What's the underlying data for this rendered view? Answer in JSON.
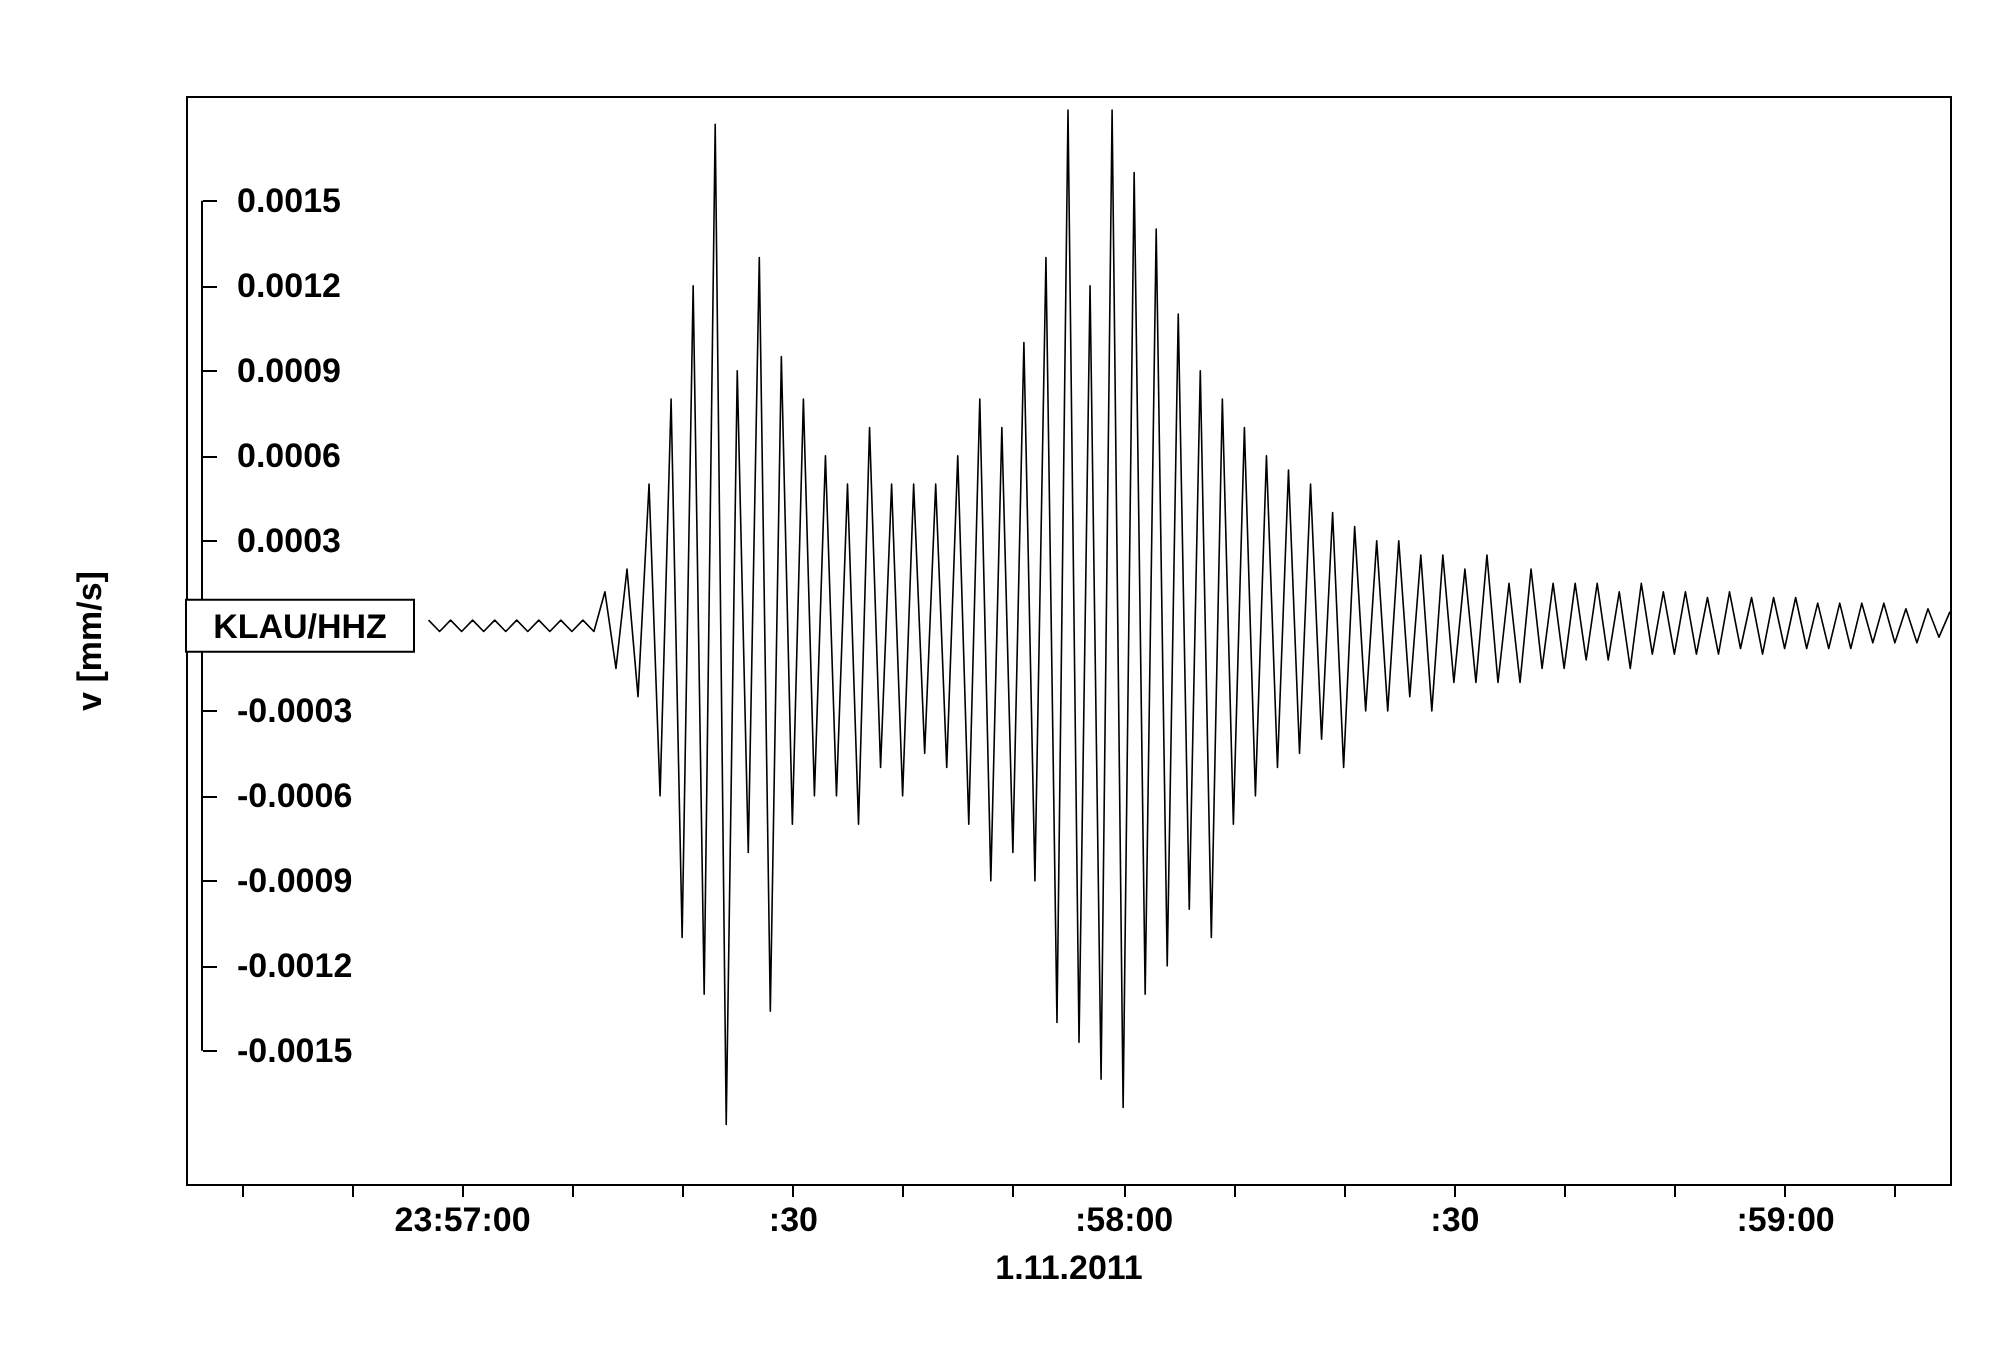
{
  "chart_data": {
    "type": "line",
    "xlabel": "1.11.2011",
    "ylabel": "v [mm/s]",
    "annotations": [
      "KLAU/HHZ"
    ],
    "xlim": [
      "2011-11-01T23:56:35",
      "2011-11-01T23:59:15"
    ],
    "ylim": [
      -0.00197,
      0.00187
    ],
    "xticks": [
      {
        "value": "2011-11-01T23:56:40",
        "label": null
      },
      {
        "value": "2011-11-01T23:56:50",
        "label": null
      },
      {
        "value": "2011-11-01T23:57:00",
        "label": "23:57:00"
      },
      {
        "value": "2011-11-01T23:57:10",
        "label": null
      },
      {
        "value": "2011-11-01T23:57:20",
        "label": null
      },
      {
        "value": "2011-11-01T23:57:30",
        "label": ":30"
      },
      {
        "value": "2011-11-01T23:57:40",
        "label": null
      },
      {
        "value": "2011-11-01T23:57:50",
        "label": null
      },
      {
        "value": "2011-11-01T23:58:00",
        "label": ":58:00"
      },
      {
        "value": "2011-11-01T23:58:10",
        "label": null
      },
      {
        "value": "2011-11-01T23:58:20",
        "label": null
      },
      {
        "value": "2011-11-01T23:58:30",
        "label": ":30"
      },
      {
        "value": "2011-11-01T23:58:40",
        "label": null
      },
      {
        "value": "2011-11-01T23:58:50",
        "label": null
      },
      {
        "value": "2011-11-01T23:59:00",
        "label": ":59:00"
      },
      {
        "value": "2011-11-01T23:59:10",
        "label": null
      }
    ],
    "yticks": [
      0.0015,
      0.0012,
      0.0009,
      0.0006,
      0.0003,
      -0.0003,
      -0.0006,
      -0.0009,
      -0.0012,
      -0.0015
    ],
    "grid": false,
    "marker": "none",
    "line_style": "solid",
    "series": [
      {
        "color": "#000000",
        "x": [
          "2011-11-01T23:56:57",
          "2011-11-01T23:56:58",
          "2011-11-01T23:56:59",
          "2011-11-01T23:57:00",
          "2011-11-01T23:57:01",
          "2011-11-01T23:57:02",
          "2011-11-01T23:57:03",
          "2011-11-01T23:57:04",
          "2011-11-01T23:57:05",
          "2011-11-01T23:57:06",
          "2011-11-01T23:57:07",
          "2011-11-01T23:57:08",
          "2011-11-01T23:57:09",
          "2011-11-01T23:57:10",
          "2011-11-01T23:57:11",
          "2011-11-01T23:57:12",
          "2011-11-01T23:57:13",
          "2011-11-01T23:57:14",
          "2011-11-01T23:57:15",
          "2011-11-01T23:57:16",
          "2011-11-01T23:57:17",
          "2011-11-01T23:57:18",
          "2011-11-01T23:57:19",
          "2011-11-01T23:57:20",
          "2011-11-01T23:57:21",
          "2011-11-01T23:57:22",
          "2011-11-01T23:57:23",
          "2011-11-01T23:57:24",
          "2011-11-01T23:57:25",
          "2011-11-01T23:57:26",
          "2011-11-01T23:57:27",
          "2011-11-01T23:57:28",
          "2011-11-01T23:57:29",
          "2011-11-01T23:57:30",
          "2011-11-01T23:57:31",
          "2011-11-01T23:57:32",
          "2011-11-01T23:57:33",
          "2011-11-01T23:57:34",
          "2011-11-01T23:57:35",
          "2011-11-01T23:57:36",
          "2011-11-01T23:57:37",
          "2011-11-01T23:57:38",
          "2011-11-01T23:57:39",
          "2011-11-01T23:57:40",
          "2011-11-01T23:57:41",
          "2011-11-01T23:57:42",
          "2011-11-01T23:57:43",
          "2011-11-01T23:57:44",
          "2011-11-01T23:57:45",
          "2011-11-01T23:57:46",
          "2011-11-01T23:57:47",
          "2011-11-01T23:57:48",
          "2011-11-01T23:57:49",
          "2011-11-01T23:57:50",
          "2011-11-01T23:57:51",
          "2011-11-01T23:57:52",
          "2011-11-01T23:57:53",
          "2011-11-01T23:57:54",
          "2011-11-01T23:57:55",
          "2011-11-01T23:57:56",
          "2011-11-01T23:57:57",
          "2011-11-01T23:57:58",
          "2011-11-01T23:57:59",
          "2011-11-01T23:58:00",
          "2011-11-01T23:58:01",
          "2011-11-01T23:58:02",
          "2011-11-01T23:58:03",
          "2011-11-01T23:58:04",
          "2011-11-01T23:58:05",
          "2011-11-01T23:58:06",
          "2011-11-01T23:58:07",
          "2011-11-01T23:58:08",
          "2011-11-01T23:58:09",
          "2011-11-01T23:58:10",
          "2011-11-01T23:58:11",
          "2011-11-01T23:58:12",
          "2011-11-01T23:58:13",
          "2011-11-01T23:58:14",
          "2011-11-01T23:58:15",
          "2011-11-01T23:58:16",
          "2011-11-01T23:58:17",
          "2011-11-01T23:58:18",
          "2011-11-01T23:58:19",
          "2011-11-01T23:58:20",
          "2011-11-01T23:58:21",
          "2011-11-01T23:58:22",
          "2011-11-01T23:58:23",
          "2011-11-01T23:58:24",
          "2011-11-01T23:58:25",
          "2011-11-01T23:58:26",
          "2011-11-01T23:58:27",
          "2011-11-01T23:58:28",
          "2011-11-01T23:58:29",
          "2011-11-01T23:58:30",
          "2011-11-01T23:58:31",
          "2011-11-01T23:58:32",
          "2011-11-01T23:58:33",
          "2011-11-01T23:58:34",
          "2011-11-01T23:58:35",
          "2011-11-01T23:58:36",
          "2011-11-01T23:58:37",
          "2011-11-01T23:58:38",
          "2011-11-01T23:58:39",
          "2011-11-01T23:58:40",
          "2011-11-01T23:58:41",
          "2011-11-01T23:58:42",
          "2011-11-01T23:58:43",
          "2011-11-01T23:58:44",
          "2011-11-01T23:58:45",
          "2011-11-01T23:58:46",
          "2011-11-01T23:58:47",
          "2011-11-01T23:58:48",
          "2011-11-01T23:58:49",
          "2011-11-01T23:58:50",
          "2011-11-01T23:58:51",
          "2011-11-01T23:58:52",
          "2011-11-01T23:58:53",
          "2011-11-01T23:58:54",
          "2011-11-01T23:58:55",
          "2011-11-01T23:58:56",
          "2011-11-01T23:58:57",
          "2011-11-01T23:58:58",
          "2011-11-01T23:58:59",
          "2011-11-01T23:59:00",
          "2011-11-01T23:59:01",
          "2011-11-01T23:59:02",
          "2011-11-01T23:59:03",
          "2011-11-01T23:59:04",
          "2011-11-01T23:59:05",
          "2011-11-01T23:59:06",
          "2011-11-01T23:59:07",
          "2011-11-01T23:59:08",
          "2011-11-01T23:59:09",
          "2011-11-01T23:59:10",
          "2011-11-01T23:59:11",
          "2011-11-01T23:59:12",
          "2011-11-01T23:59:13",
          "2011-11-01T23:59:14",
          "2011-11-01T23:59:15"
        ],
        "values": [
          2e-05,
          -2e-05,
          2e-05,
          -2e-05,
          2e-05,
          -2e-05,
          2e-05,
          -2e-05,
          2e-05,
          -2e-05,
          2e-05,
          -2e-05,
          2e-05,
          -2e-05,
          2e-05,
          -2e-05,
          0.00012,
          -0.00015,
          0.0002,
          -0.00025,
          0.0005,
          -0.0006,
          0.0008,
          -0.0011,
          0.0012,
          -0.0013,
          0.00177,
          -0.00176,
          0.0009,
          -0.0008,
          0.0013,
          -0.00136,
          0.00095,
          -0.0007,
          0.0008,
          -0.0006,
          0.0006,
          -0.0006,
          0.0005,
          -0.0007,
          0.0007,
          -0.0005,
          0.0005,
          -0.0006,
          0.0005,
          -0.00045,
          0.0005,
          -0.0005,
          0.0006,
          -0.0007,
          0.0008,
          -0.0009,
          0.0007,
          -0.0008,
          0.001,
          -0.0009,
          0.0013,
          -0.0014,
          0.00182,
          -0.00147,
          0.0012,
          -0.0016,
          0.00182,
          -0.0017,
          0.0016,
          -0.0013,
          0.0014,
          -0.0012,
          0.0011,
          -0.001,
          0.0009,
          -0.0011,
          0.0008,
          -0.0007,
          0.0007,
          -0.0006,
          0.0006,
          -0.0005,
          0.00055,
          -0.00045,
          0.0005,
          -0.0004,
          0.0004,
          -0.0005,
          0.00035,
          -0.0003,
          0.0003,
          -0.0003,
          0.0003,
          -0.00025,
          0.00025,
          -0.0003,
          0.00025,
          -0.0002,
          0.0002,
          -0.0002,
          0.00025,
          -0.0002,
          0.00015,
          -0.0002,
          0.0002,
          -0.00015,
          0.00015,
          -0.00015,
          0.00015,
          -0.00012,
          0.00015,
          -0.00012,
          0.00012,
          -0.00015,
          0.00015,
          -0.0001,
          0.00012,
          -0.0001,
          0.00012,
          -0.0001,
          0.0001,
          -0.0001,
          0.00012,
          -8e-05,
          0.0001,
          -0.0001,
          0.0001,
          -8e-05,
          0.0001,
          -8e-05,
          8e-05,
          -8e-05,
          8e-05,
          -8e-05,
          8e-05,
          -6e-05,
          8e-05,
          -6e-05,
          6e-05,
          -6e-05,
          6e-05,
          -4e-05,
          5e-05
        ]
      }
    ]
  }
}
